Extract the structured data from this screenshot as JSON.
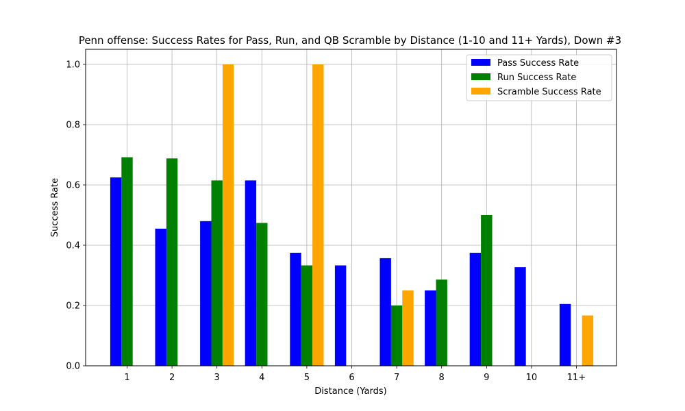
{
  "chart_data": {
    "type": "bar",
    "title": "Penn offense: Success Rates for Pass, Run, and QB Scramble by Distance (1-10 and 11+ Yards), Down #3",
    "xlabel": "Distance (Yards)",
    "ylabel": "Success Rate",
    "categories": [
      "1",
      "2",
      "3",
      "4",
      "5",
      "6",
      "7",
      "8",
      "9",
      "10",
      "11+"
    ],
    "ylim": [
      0,
      1.05
    ],
    "yticks": [
      "0.0",
      "0.2",
      "0.4",
      "0.6",
      "0.8",
      "1.0"
    ],
    "grid": true,
    "legend_position": "top-right",
    "series": [
      {
        "name": "Pass Success Rate",
        "color": "#0000ff",
        "values": [
          0.625,
          0.455,
          0.48,
          0.615,
          0.375,
          0.333,
          0.357,
          0.25,
          0.375,
          0.327,
          0.205
        ]
      },
      {
        "name": "Run Success Rate",
        "color": "#008000",
        "values": [
          0.692,
          0.688,
          0.615,
          0.474,
          0.333,
          0.0,
          0.2,
          0.286,
          0.5,
          0.0,
          0.0
        ]
      },
      {
        "name": "Scramble Success Rate",
        "color": "#ffa500",
        "values": [
          0.0,
          0.0,
          1.0,
          0.0,
          1.0,
          0.0,
          0.25,
          0.0,
          0.0,
          0.0,
          0.167
        ]
      }
    ]
  }
}
